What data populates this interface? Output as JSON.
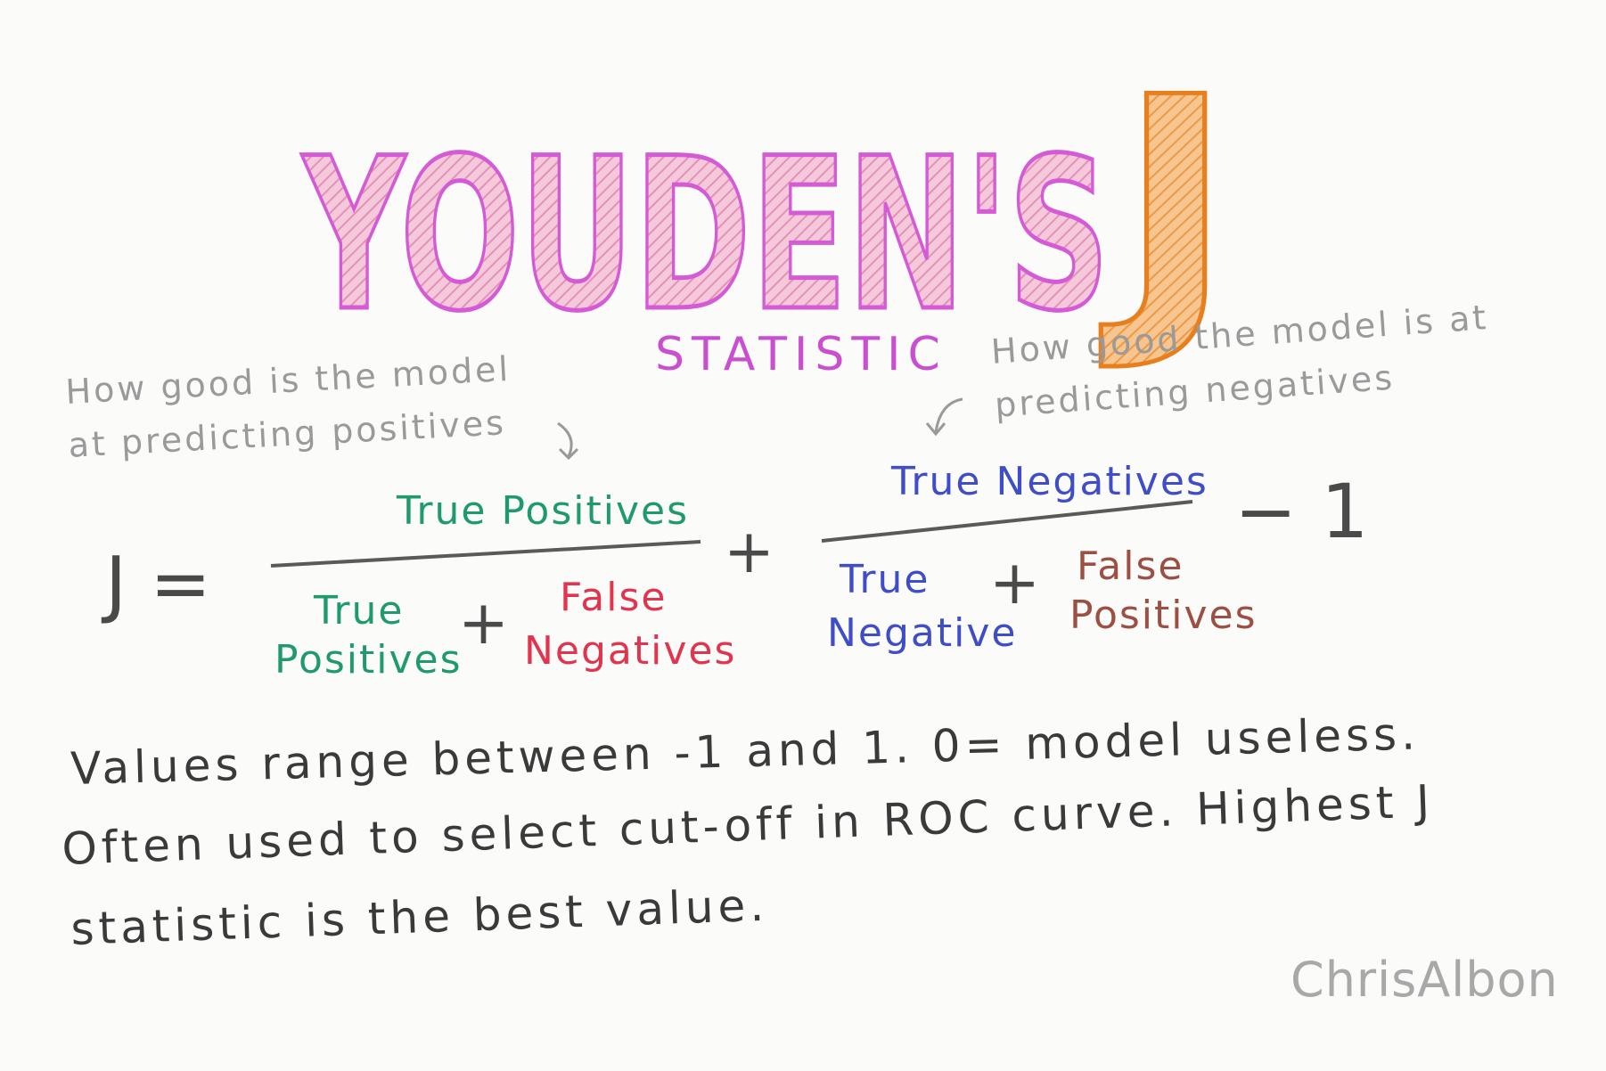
{
  "title": {
    "word": "YOUDEN'S",
    "letter_j": "J",
    "subtitle": "STATISTIC",
    "colors": {
      "pink": "#e58cc2",
      "pink_outline": "#d45ad6",
      "orange": "#f2a04c",
      "orange_outline": "#e87f1e"
    }
  },
  "annotations": {
    "left_line1": "How good is the model",
    "left_line2": "at predicting positives",
    "right_line1": "How good the model is at",
    "right_line2": "predicting negatives"
  },
  "formula": {
    "lhs": "J =",
    "frac1_num": "True Positives",
    "frac1_den_a_line1": "True",
    "frac1_den_a_line2": "Positives",
    "frac1_den_b_line1": "False",
    "frac1_den_b_line2": "Negatives",
    "plus": "+",
    "frac2_num": "True Negatives",
    "frac2_den_a_line1": "True",
    "frac2_den_a_line2": "Negative",
    "frac2_den_b_line1": "False",
    "frac2_den_b_line2": "Positives",
    "minus_one": "− 1"
  },
  "body": {
    "line1": "Values range between -1 and 1.  0= model useless.",
    "line2": "Often used to select cut-off in ROC curve. Highest J",
    "line3": "statistic is the best value."
  },
  "signature": "ChrisAlbon"
}
